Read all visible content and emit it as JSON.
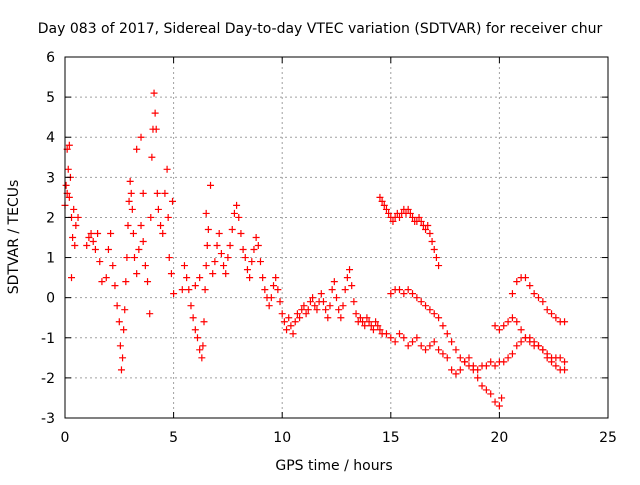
{
  "chart_data": {
    "type": "scatter",
    "title": "Day 083 of 2017, Sidereal Day-to-day VTEC variation (SDTVAR) for receiver chur",
    "xlabel": "GPS time / hours",
    "ylabel": "SDTVAR / TECUs",
    "xlim": [
      0,
      25
    ],
    "ylim": [
      -3,
      6
    ],
    "xticks": [
      0,
      5,
      10,
      15,
      20,
      25
    ],
    "xtick_labels": [
      "0",
      "5",
      "10",
      "15",
      "20",
      "25"
    ],
    "yticks": [
      -3,
      -2,
      -1,
      0,
      1,
      2,
      3,
      4,
      5,
      6
    ],
    "ytick_labels": [
      "-3",
      "-2",
      "-1",
      "0",
      "1",
      "2",
      "3",
      "4",
      "5",
      "6"
    ],
    "grid": true,
    "marker": "+",
    "color": "#ff0000",
    "series": [
      {
        "name": "SDTVAR",
        "points": [
          [
            0.0,
            2.3
          ],
          [
            0.05,
            2.8
          ],
          [
            0.1,
            3.7
          ],
          [
            0.15,
            3.2
          ],
          [
            0.2,
            2.5
          ],
          [
            0.25,
            3.0
          ],
          [
            0.3,
            2.0
          ],
          [
            0.35,
            1.5
          ],
          [
            0.4,
            2.2
          ],
          [
            0.45,
            1.3
          ],
          [
            0.3,
            0.5
          ],
          [
            0.2,
            3.8
          ],
          [
            0.1,
            2.6
          ],
          [
            0.5,
            1.8
          ],
          [
            0.6,
            2.0
          ],
          [
            1.0,
            1.3
          ],
          [
            1.1,
            1.5
          ],
          [
            1.2,
            1.6
          ],
          [
            1.3,
            1.4
          ],
          [
            1.4,
            1.2
          ],
          [
            1.5,
            1.6
          ],
          [
            1.6,
            0.9
          ],
          [
            1.7,
            0.4
          ],
          [
            1.9,
            0.5
          ],
          [
            2.0,
            1.2
          ],
          [
            2.1,
            1.6
          ],
          [
            2.2,
            0.8
          ],
          [
            2.3,
            0.3
          ],
          [
            2.4,
            -0.2
          ],
          [
            2.5,
            -0.6
          ],
          [
            2.55,
            -1.2
          ],
          [
            2.6,
            -1.8
          ],
          [
            2.65,
            -1.5
          ],
          [
            2.7,
            -0.8
          ],
          [
            2.75,
            -0.3
          ],
          [
            2.8,
            0.4
          ],
          [
            2.85,
            1.0
          ],
          [
            2.9,
            1.8
          ],
          [
            2.95,
            2.4
          ],
          [
            3.0,
            2.9
          ],
          [
            3.05,
            2.6
          ],
          [
            3.1,
            2.2
          ],
          [
            3.15,
            1.6
          ],
          [
            3.2,
            1.0
          ],
          [
            3.3,
            0.6
          ],
          [
            3.4,
            1.2
          ],
          [
            3.5,
            1.8
          ],
          [
            3.6,
            1.4
          ],
          [
            3.7,
            0.8
          ],
          [
            3.8,
            0.4
          ],
          [
            3.9,
            -0.4
          ],
          [
            3.3,
            3.7
          ],
          [
            3.5,
            4.0
          ],
          [
            3.6,
            2.6
          ],
          [
            3.95,
            2.0
          ],
          [
            4.0,
            3.5
          ],
          [
            4.05,
            4.2
          ],
          [
            4.1,
            5.1
          ],
          [
            4.15,
            4.6
          ],
          [
            4.2,
            4.2
          ],
          [
            4.25,
            2.6
          ],
          [
            4.3,
            2.2
          ],
          [
            4.4,
            1.8
          ],
          [
            4.5,
            1.6
          ],
          [
            4.6,
            2.6
          ],
          [
            4.7,
            3.2
          ],
          [
            4.75,
            2.0
          ],
          [
            4.8,
            1.0
          ],
          [
            4.9,
            0.6
          ],
          [
            4.95,
            2.4
          ],
          [
            5.0,
            0.1
          ],
          [
            5.4,
            0.2
          ],
          [
            5.5,
            0.8
          ],
          [
            5.6,
            0.5
          ],
          [
            5.7,
            0.2
          ],
          [
            5.8,
            -0.2
          ],
          [
            5.9,
            -0.5
          ],
          [
            6.0,
            -0.8
          ],
          [
            6.1,
            -1.0
          ],
          [
            6.2,
            -1.3
          ],
          [
            6.3,
            -1.5
          ],
          [
            6.35,
            -1.2
          ],
          [
            6.4,
            -0.6
          ],
          [
            6.45,
            0.2
          ],
          [
            6.5,
            0.8
          ],
          [
            6.55,
            1.3
          ],
          [
            6.6,
            1.7
          ],
          [
            6.5,
            2.1
          ],
          [
            6.2,
            0.5
          ],
          [
            6.0,
            0.3
          ],
          [
            6.7,
            2.8
          ],
          [
            6.8,
            0.6
          ],
          [
            6.9,
            0.9
          ],
          [
            7.0,
            1.3
          ],
          [
            7.1,
            1.6
          ],
          [
            7.2,
            1.1
          ],
          [
            7.3,
            0.8
          ],
          [
            7.4,
            0.6
          ],
          [
            7.5,
            1.0
          ],
          [
            7.6,
            1.3
          ],
          [
            7.7,
            1.7
          ],
          [
            7.8,
            2.1
          ],
          [
            7.9,
            2.3
          ],
          [
            8.0,
            2.0
          ],
          [
            8.1,
            1.6
          ],
          [
            8.2,
            1.2
          ],
          [
            8.3,
            1.0
          ],
          [
            8.4,
            0.7
          ],
          [
            8.5,
            0.5
          ],
          [
            8.6,
            0.9
          ],
          [
            8.7,
            1.2
          ],
          [
            8.8,
            1.5
          ],
          [
            8.9,
            1.3
          ],
          [
            9.0,
            0.9
          ],
          [
            9.1,
            0.5
          ],
          [
            9.2,
            0.2
          ],
          [
            9.3,
            0.0
          ],
          [
            9.4,
            -0.2
          ],
          [
            9.5,
            0.0
          ],
          [
            9.6,
            0.3
          ],
          [
            9.7,
            0.5
          ],
          [
            9.8,
            0.2
          ],
          [
            9.9,
            -0.1
          ],
          [
            10.0,
            -0.4
          ],
          [
            10.1,
            -0.6
          ],
          [
            10.2,
            -0.8
          ],
          [
            10.3,
            -0.5
          ],
          [
            10.4,
            -0.7
          ],
          [
            10.5,
            -0.9
          ],
          [
            10.6,
            -0.6
          ],
          [
            10.7,
            -0.4
          ],
          [
            10.8,
            -0.5
          ],
          [
            10.9,
            -0.3
          ],
          [
            11.0,
            -0.2
          ],
          [
            11.1,
            -0.4
          ],
          [
            11.2,
            -0.3
          ],
          [
            11.3,
            -0.1
          ],
          [
            11.4,
            0.0
          ],
          [
            11.5,
            -0.2
          ],
          [
            11.6,
            -0.3
          ],
          [
            11.7,
            -0.1
          ],
          [
            11.8,
            0.1
          ],
          [
            11.9,
            -0.1
          ],
          [
            12.0,
            -0.3
          ],
          [
            12.1,
            -0.5
          ],
          [
            12.2,
            -0.2
          ],
          [
            12.3,
            0.2
          ],
          [
            12.4,
            0.4
          ],
          [
            12.5,
            0.0
          ],
          [
            12.6,
            -0.3
          ],
          [
            12.7,
            -0.5
          ],
          [
            12.8,
            -0.2
          ],
          [
            12.9,
            0.2
          ],
          [
            13.0,
            0.5
          ],
          [
            13.1,
            0.7
          ],
          [
            13.2,
            0.3
          ],
          [
            13.3,
            -0.1
          ],
          [
            13.4,
            -0.4
          ],
          [
            13.5,
            -0.6
          ],
          [
            13.6,
            -0.5
          ],
          [
            13.7,
            -0.6
          ],
          [
            13.8,
            -0.7
          ],
          [
            13.9,
            -0.5
          ],
          [
            14.0,
            -0.6
          ],
          [
            14.1,
            -0.7
          ],
          [
            14.2,
            -0.8
          ],
          [
            14.3,
            -0.6
          ],
          [
            14.4,
            -0.7
          ],
          [
            14.5,
            -0.8
          ],
          [
            14.6,
            -0.9
          ],
          [
            14.5,
            2.5
          ],
          [
            14.6,
            2.4
          ],
          [
            14.7,
            2.3
          ],
          [
            14.8,
            2.2
          ],
          [
            14.9,
            2.1
          ],
          [
            15.0,
            2.0
          ],
          [
            15.1,
            1.9
          ],
          [
            15.2,
            2.0
          ],
          [
            15.3,
            2.1
          ],
          [
            15.4,
            2.0
          ],
          [
            15.5,
            2.1
          ],
          [
            15.6,
            2.2
          ],
          [
            15.7,
            2.1
          ],
          [
            15.8,
            2.2
          ],
          [
            15.9,
            2.1
          ],
          [
            16.0,
            2.0
          ],
          [
            16.1,
            1.9
          ],
          [
            16.2,
            1.9
          ],
          [
            16.3,
            2.0
          ],
          [
            16.4,
            1.9
          ],
          [
            16.5,
            1.8
          ],
          [
            16.6,
            1.7
          ],
          [
            16.7,
            1.8
          ],
          [
            16.8,
            1.6
          ],
          [
            16.9,
            1.4
          ],
          [
            17.0,
            1.2
          ],
          [
            17.1,
            1.0
          ],
          [
            17.2,
            0.8
          ],
          [
            15.0,
            0.1
          ],
          [
            15.2,
            0.2
          ],
          [
            15.4,
            0.2
          ],
          [
            15.6,
            0.1
          ],
          [
            15.8,
            0.2
          ],
          [
            16.0,
            0.1
          ],
          [
            16.2,
            0.0
          ],
          [
            16.4,
            -0.1
          ],
          [
            16.6,
            -0.2
          ],
          [
            16.8,
            -0.3
          ],
          [
            17.0,
            -0.4
          ],
          [
            17.2,
            -0.5
          ],
          [
            17.4,
            -0.7
          ],
          [
            17.6,
            -0.9
          ],
          [
            17.8,
            -1.1
          ],
          [
            18.0,
            -1.3
          ],
          [
            18.2,
            -1.5
          ],
          [
            18.4,
            -1.6
          ],
          [
            18.6,
            -1.7
          ],
          [
            18.8,
            -1.8
          ],
          [
            19.0,
            -1.8
          ],
          [
            19.2,
            -1.7
          ],
          [
            19.4,
            -1.7
          ],
          [
            19.6,
            -1.6
          ],
          [
            19.8,
            -1.7
          ],
          [
            20.0,
            -1.6
          ],
          [
            14.8,
            -0.9
          ],
          [
            15.0,
            -1.0
          ],
          [
            15.2,
            -1.1
          ],
          [
            15.4,
            -0.9
          ],
          [
            15.6,
            -1.0
          ],
          [
            15.8,
            -1.2
          ],
          [
            16.0,
            -1.1
          ],
          [
            16.2,
            -1.0
          ],
          [
            16.4,
            -1.2
          ],
          [
            16.6,
            -1.3
          ],
          [
            16.8,
            -1.2
          ],
          [
            17.0,
            -1.1
          ],
          [
            17.2,
            -1.3
          ],
          [
            17.4,
            -1.4
          ],
          [
            17.6,
            -1.5
          ],
          [
            17.8,
            -1.8
          ],
          [
            18.0,
            -1.9
          ],
          [
            18.2,
            -1.8
          ],
          [
            18.4,
            -1.6
          ],
          [
            18.6,
            -1.5
          ],
          [
            18.8,
            -1.7
          ],
          [
            19.0,
            -2.0
          ],
          [
            19.2,
            -2.2
          ],
          [
            19.4,
            -2.3
          ],
          [
            19.6,
            -2.4
          ],
          [
            19.8,
            -2.6
          ],
          [
            20.0,
            -2.7
          ],
          [
            20.1,
            -2.5
          ],
          [
            19.8,
            -0.7
          ],
          [
            20.0,
            -0.8
          ],
          [
            20.2,
            -0.7
          ],
          [
            20.4,
            -0.6
          ],
          [
            20.6,
            -0.5
          ],
          [
            20.8,
            -0.6
          ],
          [
            21.0,
            -0.8
          ],
          [
            21.2,
            -1.0
          ],
          [
            21.4,
            -1.1
          ],
          [
            21.6,
            -1.2
          ],
          [
            21.8,
            -1.2
          ],
          [
            22.0,
            -1.3
          ],
          [
            22.2,
            -1.4
          ],
          [
            22.4,
            -1.5
          ],
          [
            22.6,
            -1.5
          ],
          [
            22.8,
            -1.5
          ],
          [
            23.0,
            -1.6
          ],
          [
            20.2,
            -1.6
          ],
          [
            20.4,
            -1.5
          ],
          [
            20.6,
            -1.4
          ],
          [
            20.8,
            -1.2
          ],
          [
            21.0,
            -1.1
          ],
          [
            21.2,
            -1.0
          ],
          [
            21.4,
            -1.0
          ],
          [
            21.6,
            -1.1
          ],
          [
            21.8,
            -1.2
          ],
          [
            22.0,
            -1.3
          ],
          [
            22.2,
            -1.5
          ],
          [
            22.4,
            -1.6
          ],
          [
            22.6,
            -1.7
          ],
          [
            22.8,
            -1.8
          ],
          [
            23.0,
            -1.8
          ],
          [
            20.6,
            0.1
          ],
          [
            20.8,
            0.4
          ],
          [
            21.0,
            0.5
          ],
          [
            21.2,
            0.5
          ],
          [
            21.4,
            0.3
          ],
          [
            21.6,
            0.1
          ],
          [
            21.8,
            0.0
          ],
          [
            22.0,
            -0.1
          ],
          [
            22.2,
            -0.3
          ],
          [
            22.4,
            -0.4
          ],
          [
            22.6,
            -0.5
          ],
          [
            22.8,
            -0.6
          ],
          [
            23.0,
            -0.6
          ]
        ]
      }
    ]
  }
}
